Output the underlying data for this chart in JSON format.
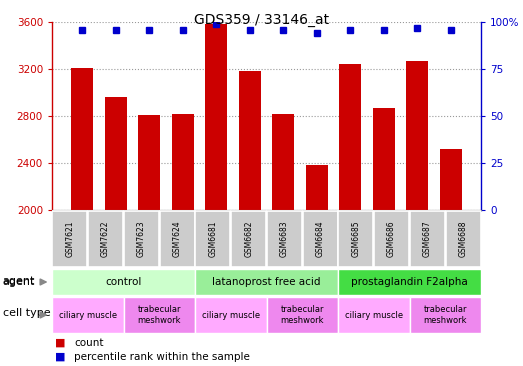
{
  "title": "GDS359 / 33146_at",
  "samples": [
    "GSM7621",
    "GSM7622",
    "GSM7623",
    "GSM7624",
    "GSM6681",
    "GSM6682",
    "GSM6683",
    "GSM6684",
    "GSM6685",
    "GSM6686",
    "GSM6687",
    "GSM6688"
  ],
  "counts": [
    3210,
    2960,
    2810,
    2815,
    3580,
    3185,
    2820,
    2380,
    3240,
    2870,
    3270,
    2520
  ],
  "percentile_ranks": [
    96,
    96,
    96,
    96,
    99,
    96,
    96,
    94,
    96,
    96,
    97,
    96
  ],
  "ylim_left": [
    2000,
    3600
  ],
  "ylim_right": [
    0,
    100
  ],
  "yticks_left": [
    2000,
    2400,
    2800,
    3200,
    3600
  ],
  "yticks_right": [
    0,
    25,
    50,
    75,
    100
  ],
  "bar_color": "#cc0000",
  "dot_color": "#0000cc",
  "agent_groups": [
    {
      "label": "control",
      "start": 0,
      "end": 3,
      "color": "#ccffcc"
    },
    {
      "label": "latanoprost free acid",
      "start": 4,
      "end": 7,
      "color": "#99ee99"
    },
    {
      "label": "prostaglandin F2alpha",
      "start": 8,
      "end": 11,
      "color": "#44dd44"
    }
  ],
  "cell_type_groups": [
    {
      "label": "ciliary muscle",
      "start": 0,
      "end": 1,
      "color": "#ffaaff"
    },
    {
      "label": "trabecular\nmeshwork",
      "start": 2,
      "end": 3,
      "color": "#ee88ee"
    },
    {
      "label": "ciliary muscle",
      "start": 4,
      "end": 5,
      "color": "#ffaaff"
    },
    {
      "label": "trabecular\nmeshwork",
      "start": 6,
      "end": 7,
      "color": "#ee88ee"
    },
    {
      "label": "ciliary muscle",
      "start": 8,
      "end": 9,
      "color": "#ffaaff"
    },
    {
      "label": "trabecular\nmeshwork",
      "start": 10,
      "end": 11,
      "color": "#ee88ee"
    }
  ],
  "left_axis_color": "#cc0000",
  "right_axis_color": "#0000cc",
  "grid_color": "#999999",
  "sample_box_color": "#cccccc",
  "agent_row_label": "agent",
  "cell_type_row_label": "cell type",
  "legend_count_label": "count",
  "legend_percentile_label": "percentile rank within the sample",
  "fig_width": 5.23,
  "fig_height": 3.66,
  "dpi": 100
}
